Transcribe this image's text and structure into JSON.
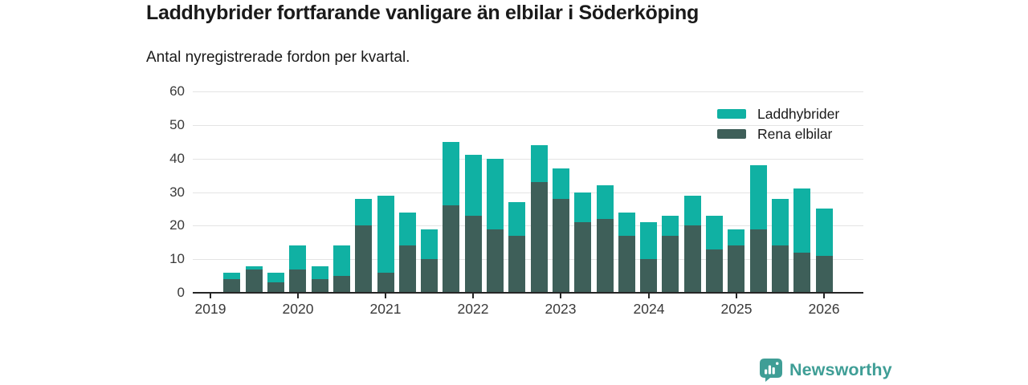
{
  "header": {
    "title": "Laddhybrider fortfarande vanligare än elbilar i Söderköping",
    "subtitle": "Antal nyregistrerade fordon per kvartal."
  },
  "chart_data": {
    "type": "bar",
    "stacked": true,
    "title": "Laddhybrider fortfarande vanligare än elbilar i Söderköping",
    "subtitle": "Antal nyregistrerade fordon per kvartal.",
    "ylabel": "",
    "xlabel": "",
    "ylim": [
      0,
      60
    ],
    "y_ticks": [
      0,
      10,
      20,
      30,
      40,
      50,
      60
    ],
    "grid": true,
    "legend_position": "top-right",
    "x_year_labels": [
      "2019",
      "2020",
      "2021",
      "2022",
      "2023",
      "2024",
      "2025",
      "2026"
    ],
    "categories": [
      "2019 Q2",
      "2019 Q3",
      "2019 Q4",
      "2020 Q1",
      "2020 Q2",
      "2020 Q3",
      "2020 Q4",
      "2021 Q1",
      "2021 Q2",
      "2021 Q3",
      "2021 Q4",
      "2022 Q1",
      "2022 Q2",
      "2022 Q3",
      "2022 Q4",
      "2023 Q1",
      "2023 Q2",
      "2023 Q3",
      "2023 Q4",
      "2024 Q1",
      "2024 Q2",
      "2024 Q3",
      "2024 Q4",
      "2025 Q1",
      "2025 Q2",
      "2025 Q3",
      "2025 Q4",
      "2026 Q1"
    ],
    "series": [
      {
        "name": "Rena elbilar",
        "stack_order": "bottom",
        "color": "#3e5f59",
        "values": [
          4,
          7,
          3,
          7,
          4,
          5,
          20,
          6,
          14,
          10,
          26,
          23,
          19,
          17,
          33,
          28,
          21,
          22,
          17,
          10,
          17,
          20,
          13,
          14,
          19,
          14,
          12,
          11
        ]
      },
      {
        "name": "Laddhybrider",
        "stack_order": "top",
        "color": "#10b1a3",
        "values": [
          2,
          1,
          3,
          7,
          4,
          9,
          8,
          23,
          10,
          9,
          19,
          18,
          21,
          10,
          11,
          9,
          9,
          10,
          7,
          11,
          6,
          9,
          10,
          5,
          19,
          14,
          19,
          14
        ]
      }
    ],
    "totals": [
      6,
      8,
      6,
      14,
      8,
      14,
      28,
      29,
      24,
      19,
      45,
      41,
      40,
      27,
      44,
      37,
      30,
      32,
      24,
      21,
      23,
      29,
      23,
      19,
      38,
      28,
      31,
      25
    ],
    "legend": [
      {
        "label": "Laddhybrider",
        "color": "#10b1a3"
      },
      {
        "label": "Rena elbilar",
        "color": "#3e5f59"
      }
    ]
  },
  "footer": {
    "brand": "Newsworthy",
    "brand_color": "#3f9e96",
    "icon": "newsworthy-logo-icon"
  }
}
